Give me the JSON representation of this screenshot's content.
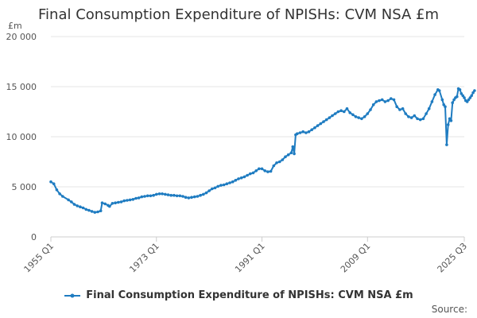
{
  "chart_data": {
    "type": "line",
    "title": "Final Consumption Expenditure of NPISHs: CVM NSA £m",
    "ylabel": "£m",
    "xlabel": "",
    "ylim": [
      0,
      20000
    ],
    "y_ticks": [
      0,
      5000,
      10000,
      15000,
      20000
    ],
    "y_tick_labels": [
      "0",
      "5 000",
      "10 000",
      "15 000",
      "20 000"
    ],
    "x_range": [
      1955.0,
      2025.5
    ],
    "x_ticks": [
      1955.0,
      1973.0,
      1991.0,
      2009.0,
      2025.5
    ],
    "x_tick_labels": [
      "1955 Q1",
      "1973 Q1",
      "1991 Q1",
      "2009 Q1",
      "2025 Q3"
    ],
    "legend": "Final Consumption Expenditure of NPISHs: CVM NSA £m",
    "legend_position": "bottom",
    "source_label": "Source:",
    "series": [
      {
        "name": "Final Consumption Expenditure of NPISHs: CVM NSA £m",
        "color": "#1f7cc1",
        "points": [
          [
            1955.0,
            5500
          ],
          [
            1955.5,
            5300
          ],
          [
            1956.0,
            4700
          ],
          [
            1956.5,
            4300
          ],
          [
            1957.0,
            4050
          ],
          [
            1958.0,
            3700
          ],
          [
            1958.5,
            3500
          ],
          [
            1959.0,
            3250
          ],
          [
            1959.5,
            3100
          ],
          [
            1960.0,
            3000
          ],
          [
            1960.5,
            2900
          ],
          [
            1961.0,
            2750
          ],
          [
            1961.5,
            2650
          ],
          [
            1962.0,
            2550
          ],
          [
            1962.5,
            2450
          ],
          [
            1963.0,
            2500
          ],
          [
            1963.5,
            2600
          ],
          [
            1963.75,
            3400
          ],
          [
            1964.25,
            3300
          ],
          [
            1964.75,
            3150
          ],
          [
            1965.0,
            3050
          ],
          [
            1965.5,
            3350
          ],
          [
            1966.0,
            3400
          ],
          [
            1966.5,
            3450
          ],
          [
            1967.0,
            3500
          ],
          [
            1967.5,
            3600
          ],
          [
            1968.0,
            3650
          ],
          [
            1968.5,
            3700
          ],
          [
            1969.0,
            3750
          ],
          [
            1969.5,
            3850
          ],
          [
            1970.0,
            3900
          ],
          [
            1970.5,
            4000
          ],
          [
            1971.0,
            4050
          ],
          [
            1971.5,
            4100
          ],
          [
            1972.0,
            4100
          ],
          [
            1972.5,
            4150
          ],
          [
            1973.0,
            4250
          ],
          [
            1973.5,
            4300
          ],
          [
            1974.0,
            4300
          ],
          [
            1974.5,
            4250
          ],
          [
            1975.0,
            4200
          ],
          [
            1975.5,
            4150
          ],
          [
            1976.0,
            4150
          ],
          [
            1976.5,
            4100
          ],
          [
            1977.0,
            4100
          ],
          [
            1977.5,
            4050
          ],
          [
            1978.0,
            3950
          ],
          [
            1978.5,
            3900
          ],
          [
            1979.0,
            3950
          ],
          [
            1979.5,
            4000
          ],
          [
            1980.0,
            4050
          ],
          [
            1980.5,
            4150
          ],
          [
            1981.0,
            4250
          ],
          [
            1981.5,
            4400
          ],
          [
            1982.0,
            4600
          ],
          [
            1982.5,
            4800
          ],
          [
            1983.0,
            4900
          ],
          [
            1983.5,
            5050
          ],
          [
            1984.0,
            5150
          ],
          [
            1984.5,
            5200
          ],
          [
            1985.0,
            5300
          ],
          [
            1985.5,
            5400
          ],
          [
            1986.0,
            5500
          ],
          [
            1986.5,
            5650
          ],
          [
            1987.0,
            5800
          ],
          [
            1987.5,
            5900
          ],
          [
            1988.0,
            6000
          ],
          [
            1988.5,
            6150
          ],
          [
            1989.0,
            6300
          ],
          [
            1989.5,
            6400
          ],
          [
            1990.0,
            6600
          ],
          [
            1990.5,
            6800
          ],
          [
            1991.0,
            6800
          ],
          [
            1991.5,
            6600
          ],
          [
            1992.0,
            6500
          ],
          [
            1992.5,
            6550
          ],
          [
            1993.0,
            7100
          ],
          [
            1993.5,
            7400
          ],
          [
            1994.0,
            7500
          ],
          [
            1994.5,
            7700
          ],
          [
            1995.0,
            8000
          ],
          [
            1995.5,
            8200
          ],
          [
            1996.0,
            8400
          ],
          [
            1996.25,
            9000
          ],
          [
            1996.5,
            8300
          ],
          [
            1996.75,
            10200
          ],
          [
            1997.0,
            10300
          ],
          [
            1997.5,
            10400
          ],
          [
            1998.0,
            10500
          ],
          [
            1998.5,
            10400
          ],
          [
            1999.0,
            10500
          ],
          [
            1999.5,
            10700
          ],
          [
            2000.0,
            10900
          ],
          [
            2000.5,
            11100
          ],
          [
            2001.0,
            11300
          ],
          [
            2001.5,
            11500
          ],
          [
            2002.0,
            11700
          ],
          [
            2002.5,
            11900
          ],
          [
            2003.0,
            12100
          ],
          [
            2003.5,
            12300
          ],
          [
            2004.0,
            12500
          ],
          [
            2004.5,
            12600
          ],
          [
            2005.0,
            12500
          ],
          [
            2005.5,
            12800
          ],
          [
            2006.0,
            12400
          ],
          [
            2006.5,
            12200
          ],
          [
            2007.0,
            12000
          ],
          [
            2007.5,
            11900
          ],
          [
            2008.0,
            11800
          ],
          [
            2008.5,
            12000
          ],
          [
            2009.0,
            12300
          ],
          [
            2009.5,
            12700
          ],
          [
            2010.0,
            13200
          ],
          [
            2010.5,
            13500
          ],
          [
            2011.0,
            13600
          ],
          [
            2011.5,
            13700
          ],
          [
            2012.0,
            13500
          ],
          [
            2012.5,
            13600
          ],
          [
            2013.0,
            13800
          ],
          [
            2013.5,
            13700
          ],
          [
            2014.0,
            13000
          ],
          [
            2014.5,
            12700
          ],
          [
            2015.0,
            12800
          ],
          [
            2015.5,
            12300
          ],
          [
            2016.0,
            12000
          ],
          [
            2016.5,
            11900
          ],
          [
            2017.0,
            12100
          ],
          [
            2017.5,
            11800
          ],
          [
            2018.0,
            11700
          ],
          [
            2018.5,
            11800
          ],
          [
            2019.0,
            12300
          ],
          [
            2019.5,
            12800
          ],
          [
            2020.0,
            13500
          ],
          [
            2020.5,
            14200
          ],
          [
            2021.0,
            14700
          ],
          [
            2021.25,
            14600
          ],
          [
            2021.75,
            13700
          ],
          [
            2022.0,
            13200
          ],
          [
            2022.25,
            13000
          ],
          [
            2022.5,
            9200
          ],
          [
            2022.75,
            11200
          ],
          [
            2023.0,
            11800
          ],
          [
            2023.25,
            11600
          ],
          [
            2023.5,
            13400
          ],
          [
            2023.75,
            13700
          ],
          [
            2024.0,
            13900
          ],
          [
            2024.25,
            14000
          ],
          [
            2024.5,
            14800
          ],
          [
            2024.75,
            14700
          ],
          [
            2025.0,
            14300
          ],
          [
            2025.25,
            14100
          ],
          [
            2025.5,
            13900
          ],
          [
            2025.75,
            13600
          ],
          [
            2026.0,
            13500
          ],
          [
            2026.25,
            13700
          ],
          [
            2026.5,
            13900
          ],
          [
            2026.75,
            14100
          ],
          [
            2027.0,
            14400
          ],
          [
            2027.25,
            14600
          ]
        ]
      }
    ]
  }
}
